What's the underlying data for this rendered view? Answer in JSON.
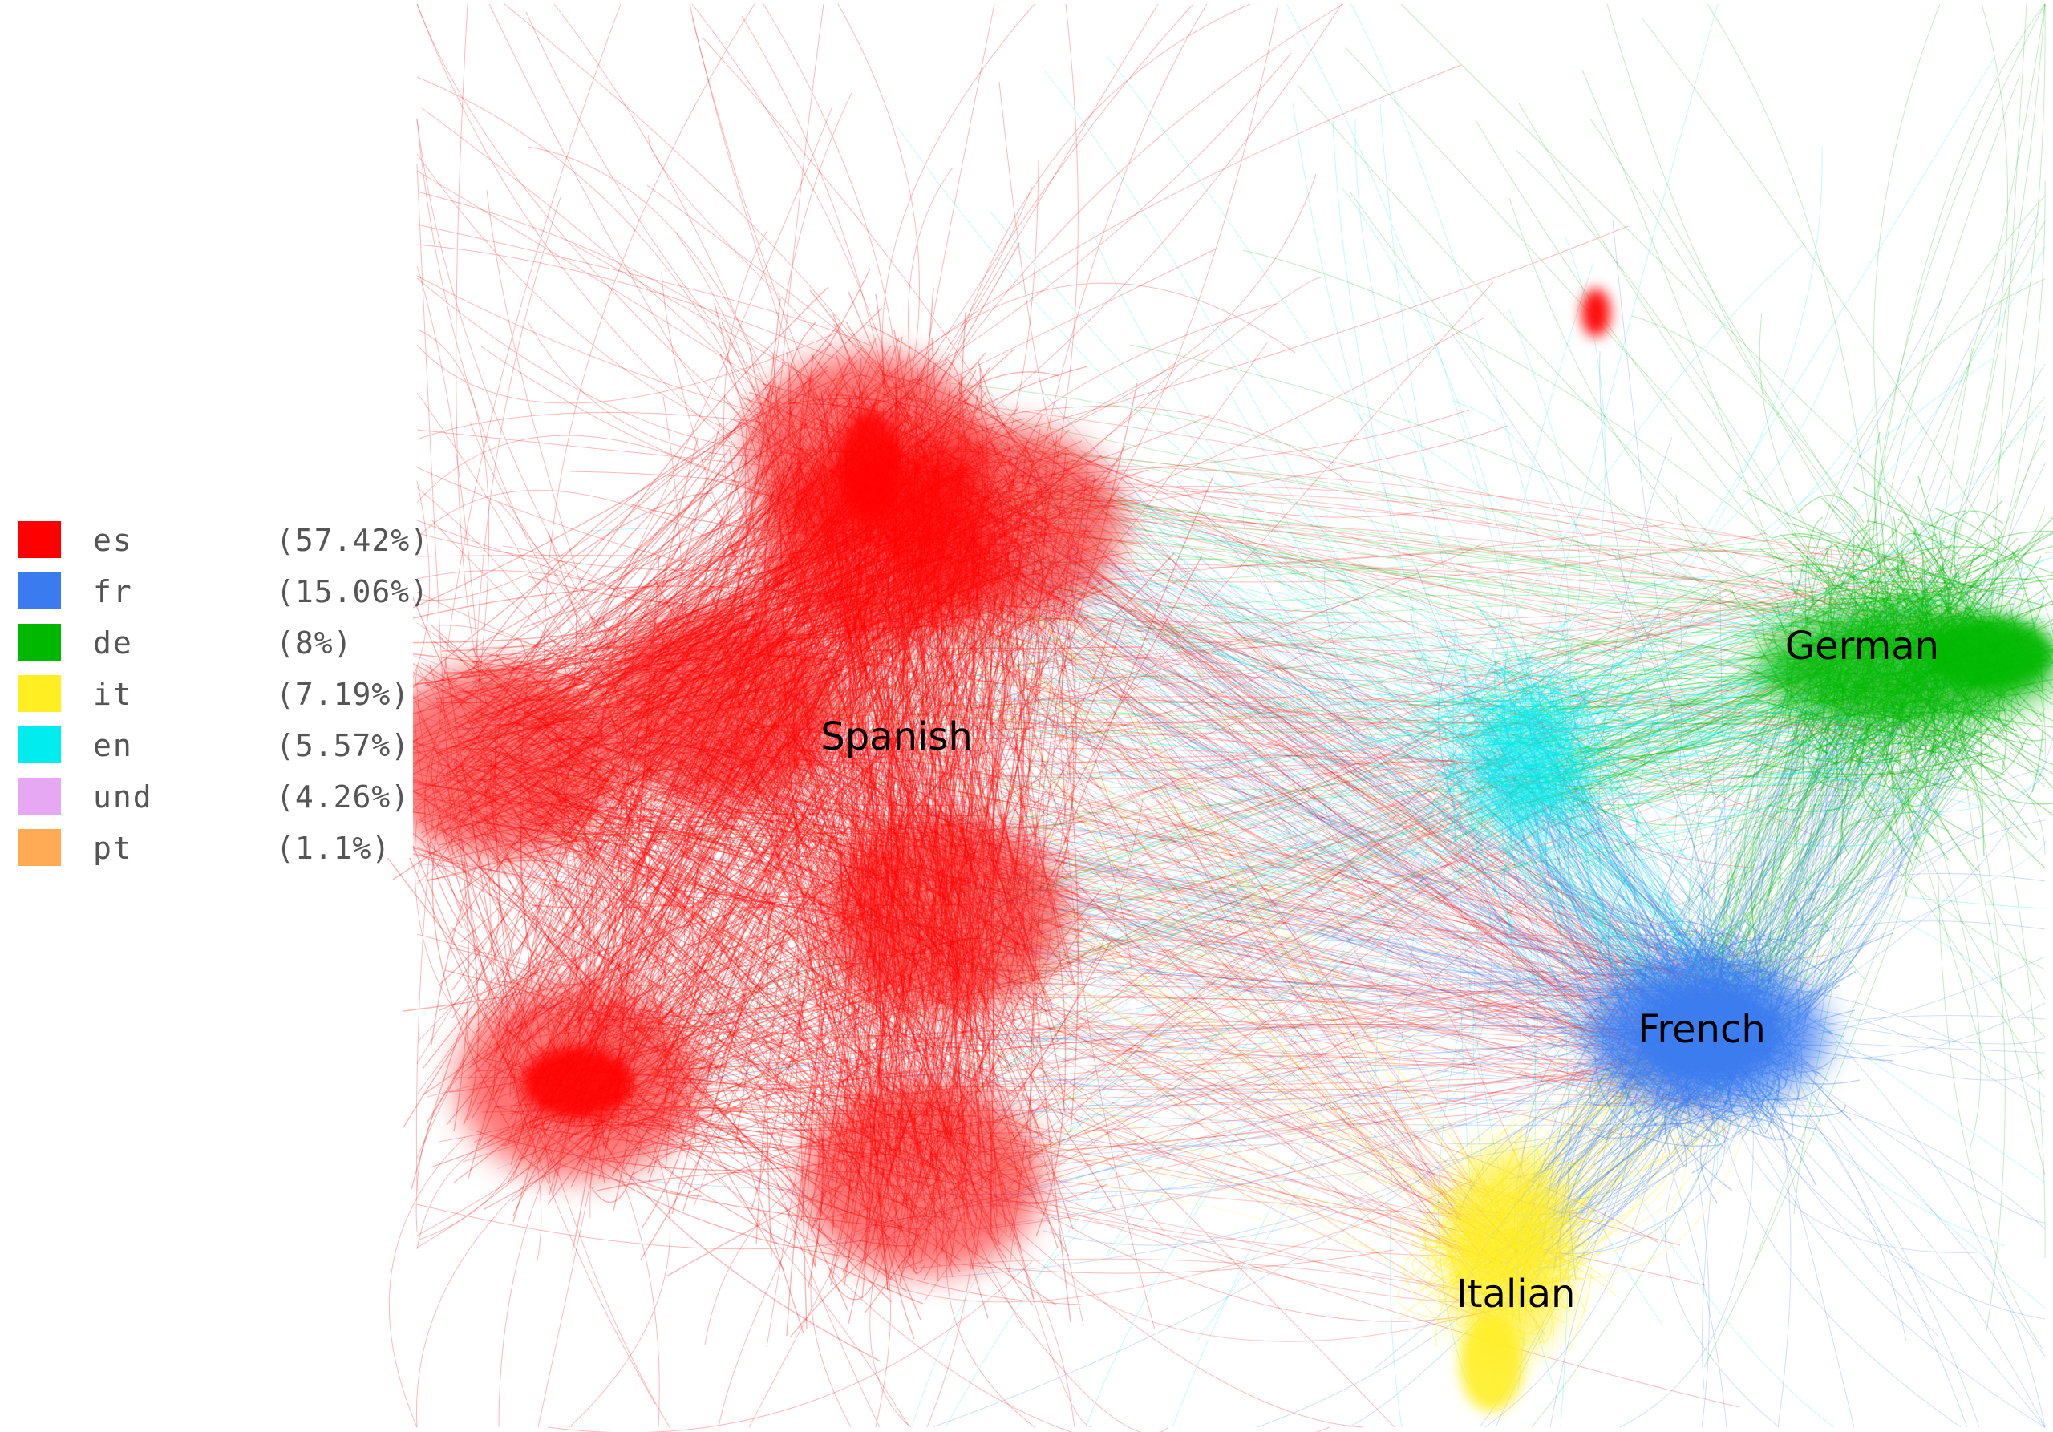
{
  "legend": {
    "items": [
      {
        "code": "es",
        "pct": "(57.42%)",
        "color": "#ff0000"
      },
      {
        "code": "fr",
        "pct": "(15.06%)",
        "color": "#3a7bf0"
      },
      {
        "code": "de",
        "pct": "(8%)",
        "color": "#00b800"
      },
      {
        "code": "it",
        "pct": "(7.19%)",
        "color": "#ffee22"
      },
      {
        "code": "en",
        "pct": "(5.57%)",
        "color": "#00ecee"
      },
      {
        "code": "und",
        "pct": "(4.26%)",
        "color": "#e6a8f2"
      },
      {
        "code": "pt",
        "pct": "(1.1%)",
        "color": "#ffaa55"
      }
    ]
  },
  "labels": {
    "spanish": "Spanish",
    "german": "German",
    "french": "French",
    "italian": "Italian"
  }
}
